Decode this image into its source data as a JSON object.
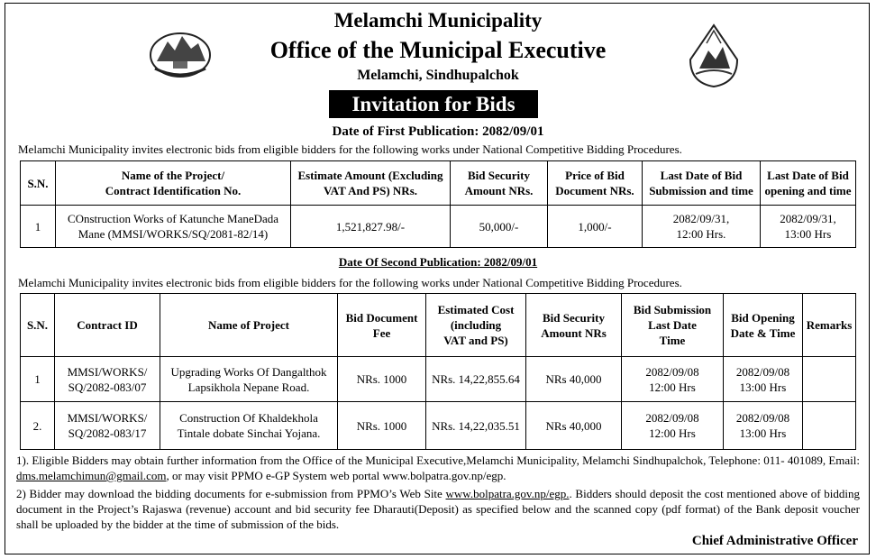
{
  "header": {
    "title": "Melamchi Municipality",
    "office": "Office of the Municipal Executive",
    "location": "Melamchi, Sindhupalchok",
    "banner": "Invitation for Bids"
  },
  "first": {
    "date_line": "Date of First Publication: 2082/09/01",
    "intro": "Melamchi Municipality invites electronic bids from eligible bidders for the following works under National Competitive Bidding Procedures.",
    "table": {
      "headers": [
        [
          "S.N."
        ],
        [
          "Name of the Project/",
          "Contract Identification  No."
        ],
        [
          "Estimate Amount (Excluding",
          "VAT And PS) NRs."
        ],
        [
          "Bid Security",
          "Amount NRs."
        ],
        [
          "Price of Bid",
          "Document NRs."
        ],
        [
          "Last Date of Bid",
          "Submission and time"
        ],
        [
          "Last Date of Bid",
          "opening and time"
        ]
      ],
      "rows": [
        [
          [
            "1"
          ],
          [
            "COnstruction Works of Katunche ManeDada",
            "Mane (MMSI/WORKS/SQ/2081-82/14)"
          ],
          [
            "1,521,827.98/-"
          ],
          [
            "50,000/-"
          ],
          [
            "1,000/-"
          ],
          [
            "2082/09/31,",
            "12:00 Hrs."
          ],
          [
            "2082/09/31,",
            "13:00 Hrs"
          ]
        ]
      ]
    }
  },
  "second": {
    "date_line": "Date Of Second Publication: 2082/09/01",
    "intro": "Melamchi Municipality invites electronic bids from eligible bidders for the following works under National Competitive Bidding Procedures.",
    "table": {
      "headers": [
        [
          "S.N."
        ],
        [
          "Contract ID"
        ],
        [
          "Name of Project"
        ],
        [
          "Bid Document",
          "Fee"
        ],
        [
          "Estimated Cost",
          "(including",
          "VAT and PS)"
        ],
        [
          "Bid Security",
          "Amount NRs"
        ],
        [
          "Bid Submission",
          "Last Date",
          "Time"
        ],
        [
          "Bid Opening",
          "Date & Time"
        ],
        [
          "Remarks"
        ]
      ],
      "rows": [
        [
          [
            "1"
          ],
          [
            "MMSI/WORKS/",
            "SQ/2082-083/07"
          ],
          [
            "Upgrading Works Of Dangalthok",
            "Lapsikhola Nepane Road."
          ],
          [
            "NRs. 1000"
          ],
          [
            "NRs. 14,22,855.64"
          ],
          [
            "NRs 40,000"
          ],
          [
            "2082/09/08",
            "12:00 Hrs"
          ],
          [
            "2082/09/08",
            "13:00 Hrs"
          ],
          []
        ],
        [
          [
            "2."
          ],
          [
            "MMSI/WORKS/",
            "SQ/2082-083/17"
          ],
          [
            "Construction Of Khaldekhola",
            "Tintale dobate  Sinchai Yojana."
          ],
          [
            "NRs. 1000"
          ],
          [
            "NRs. 14,22,035.51"
          ],
          [
            "NRs 40,000"
          ],
          [
            "2082/09/08",
            "12:00 Hrs"
          ],
          [
            "2082/09/08",
            "13:00 Hrs"
          ],
          []
        ]
      ]
    }
  },
  "notes": [
    [
      "1).  Eligible Bidders may obtain further information from the Office of the Municipal Executive,Melamchi Municipality, Melamchi Sindhupalchok, Telephone: 011- 401089, Email: ",
      "dms.melamchimun@gmail.com",
      ", or may visit PPMO e-GP System web portal www.bolpatra.gov.np/egp."
    ],
    [
      " 2)  Bidder may download the bidding documents for e-submission from PPMO’s Web Site ",
      "www.bolpatra.gov.np/egp.",
      ". Bidders should deposit the cost mentioned above of bidding document in the Project’s Rajaswa (revenue) account and bid security fee Dharauti(Deposit) as specified below and the scanned copy (pdf format) of the Bank deposit voucher shall be uploaded by the bidder at the time of submission of the bids."
    ]
  ],
  "signature": "Chief Administrative Officer"
}
